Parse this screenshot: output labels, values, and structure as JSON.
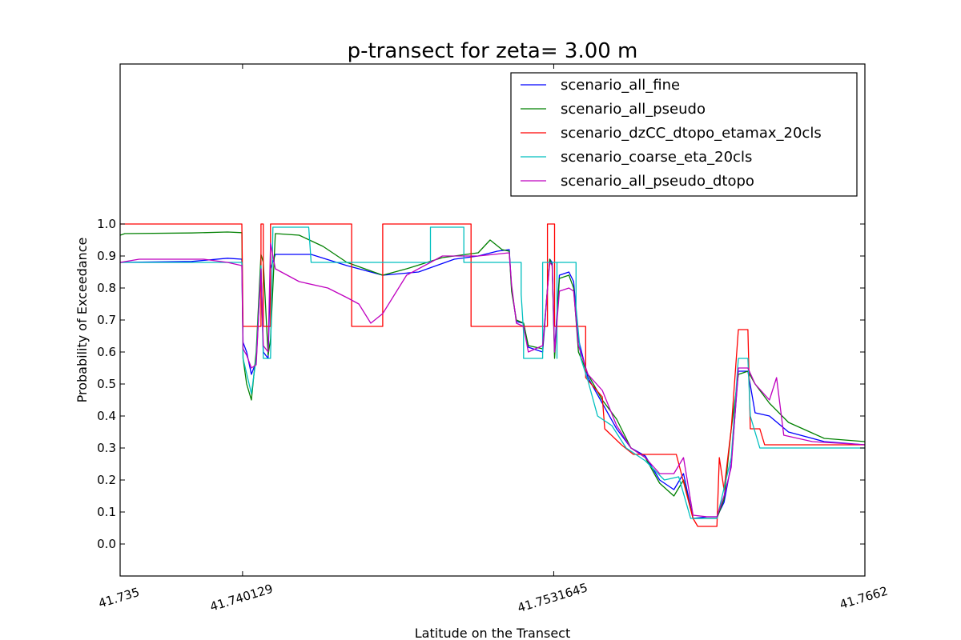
{
  "chart_data": {
    "type": "line",
    "title": "p-transect for zeta= 3.00 m",
    "xlabel": "Latitude on the Transect",
    "ylabel": "Probability of Exceedance",
    "xlim": [
      41.735,
      41.7662
    ],
    "ylim": [
      -0.1,
      1.5
    ],
    "xticks": [
      41.735,
      41.740129,
      41.7531645,
      41.7662
    ],
    "xtick_labels": [
      "41.735",
      "41.740129",
      "41.7531645",
      "41.7662"
    ],
    "yticks": [
      0.0,
      0.1,
      0.2,
      0.3,
      0.4,
      0.5,
      0.6,
      0.7,
      0.8,
      0.9,
      1.0
    ],
    "ytick_labels": [
      "0.0",
      "0.1",
      "0.2",
      "0.3",
      "0.4",
      "0.5",
      "0.6",
      "0.7",
      "0.8",
      "0.9",
      "1.0"
    ],
    "grid": false,
    "legend_position": "top-right",
    "series": [
      {
        "name": "scenario_all_fine",
        "color": "#0000ff",
        "points": [
          [
            41.735,
            0.88
          ],
          [
            41.738,
            0.883
          ],
          [
            41.7395,
            0.893
          ],
          [
            41.7401,
            0.89
          ],
          [
            41.74015,
            0.63
          ],
          [
            41.7403,
            0.6
          ],
          [
            41.7405,
            0.53
          ],
          [
            41.7407,
            0.57
          ],
          [
            41.7409,
            0.86
          ],
          [
            41.741,
            0.6
          ],
          [
            41.7412,
            0.58
          ],
          [
            41.7413,
            0.86
          ],
          [
            41.7415,
            0.905
          ],
          [
            41.743,
            0.905
          ],
          [
            41.7445,
            0.87
          ],
          [
            41.746,
            0.84
          ],
          [
            41.7475,
            0.85
          ],
          [
            41.749,
            0.89
          ],
          [
            41.75,
            0.9
          ],
          [
            41.7508,
            0.915
          ],
          [
            41.7513,
            0.92
          ],
          [
            41.7514,
            0.8
          ],
          [
            41.7516,
            0.695
          ],
          [
            41.7519,
            0.69
          ],
          [
            41.7521,
            0.615
          ],
          [
            41.7527,
            0.6
          ],
          [
            41.753,
            0.89
          ],
          [
            41.7531,
            0.88
          ],
          [
            41.7532,
            0.6
          ],
          [
            41.7534,
            0.84
          ],
          [
            41.7538,
            0.85
          ],
          [
            41.754,
            0.82
          ],
          [
            41.7542,
            0.64
          ],
          [
            41.7546,
            0.52
          ],
          [
            41.7552,
            0.44
          ],
          [
            41.7558,
            0.36
          ],
          [
            41.7564,
            0.3
          ],
          [
            41.757,
            0.275
          ],
          [
            41.7576,
            0.2
          ],
          [
            41.7582,
            0.17
          ],
          [
            41.7586,
            0.22
          ],
          [
            41.759,
            0.08
          ],
          [
            41.7596,
            0.085
          ],
          [
            41.76,
            0.085
          ],
          [
            41.7603,
            0.13
          ],
          [
            41.7606,
            0.25
          ],
          [
            41.7609,
            0.54
          ],
          [
            41.7613,
            0.54
          ],
          [
            41.7616,
            0.41
          ],
          [
            41.7622,
            0.4
          ],
          [
            41.763,
            0.35
          ],
          [
            41.7645,
            0.32
          ],
          [
            41.7662,
            0.31
          ]
        ]
      },
      {
        "name": "scenario_all_pseudo",
        "color": "#008000",
        "points": [
          [
            41.735,
            0.965
          ],
          [
            41.7352,
            0.97
          ],
          [
            41.738,
            0.972
          ],
          [
            41.7395,
            0.975
          ],
          [
            41.7401,
            0.973
          ],
          [
            41.74015,
            0.58
          ],
          [
            41.7403,
            0.5
          ],
          [
            41.7405,
            0.45
          ],
          [
            41.7407,
            0.6
          ],
          [
            41.7409,
            0.905
          ],
          [
            41.741,
            0.88
          ],
          [
            41.7412,
            0.59
          ],
          [
            41.7413,
            0.64
          ],
          [
            41.7415,
            0.97
          ],
          [
            41.7425,
            0.965
          ],
          [
            41.7435,
            0.93
          ],
          [
            41.7445,
            0.88
          ],
          [
            41.746,
            0.84
          ],
          [
            41.747,
            0.86
          ],
          [
            41.7485,
            0.895
          ],
          [
            41.75,
            0.91
          ],
          [
            41.7505,
            0.95
          ],
          [
            41.751,
            0.92
          ],
          [
            41.7513,
            0.915
          ],
          [
            41.7514,
            0.79
          ],
          [
            41.7516,
            0.7
          ],
          [
            41.7519,
            0.69
          ],
          [
            41.7521,
            0.62
          ],
          [
            41.7527,
            0.61
          ],
          [
            41.753,
            0.89
          ],
          [
            41.7531,
            0.87
          ],
          [
            41.7532,
            0.58
          ],
          [
            41.7534,
            0.83
          ],
          [
            41.7538,
            0.84
          ],
          [
            41.754,
            0.8
          ],
          [
            41.7542,
            0.6
          ],
          [
            41.7546,
            0.53
          ],
          [
            41.7552,
            0.45
          ],
          [
            41.7558,
            0.39
          ],
          [
            41.7564,
            0.3
          ],
          [
            41.757,
            0.27
          ],
          [
            41.7576,
            0.19
          ],
          [
            41.7582,
            0.15
          ],
          [
            41.7586,
            0.2
          ],
          [
            41.759,
            0.08
          ],
          [
            41.7596,
            0.08
          ],
          [
            41.76,
            0.08
          ],
          [
            41.7603,
            0.14
          ],
          [
            41.7606,
            0.36
          ],
          [
            41.7609,
            0.53
          ],
          [
            41.7613,
            0.54
          ],
          [
            41.7616,
            0.5
          ],
          [
            41.7622,
            0.44
          ],
          [
            41.763,
            0.38
          ],
          [
            41.7645,
            0.33
          ],
          [
            41.7662,
            0.32
          ]
        ]
      },
      {
        "name": "scenario_dzCC_dtopo_etamax_20cls",
        "color": "#ff0000",
        "points": [
          [
            41.735,
            1.0
          ],
          [
            41.7401,
            1.0
          ],
          [
            41.74015,
            0.68
          ],
          [
            41.7409,
            0.68
          ],
          [
            41.7409,
            1.0
          ],
          [
            41.741,
            1.0
          ],
          [
            41.741,
            0.68
          ],
          [
            41.7413,
            0.68
          ],
          [
            41.7413,
            1.0
          ],
          [
            41.7447,
            1.0
          ],
          [
            41.7447,
            0.68
          ],
          [
            41.746,
            0.68
          ],
          [
            41.746,
            1.0
          ],
          [
            41.7497,
            1.0
          ],
          [
            41.7497,
            0.68
          ],
          [
            41.7529,
            0.68
          ],
          [
            41.7529,
            1.0
          ],
          [
            41.7532,
            1.0
          ],
          [
            41.7532,
            0.68
          ],
          [
            41.7545,
            0.68
          ],
          [
            41.7545,
            0.52
          ],
          [
            41.7552,
            0.46
          ],
          [
            41.7553,
            0.36
          ],
          [
            41.756,
            0.31
          ],
          [
            41.7565,
            0.28
          ],
          [
            41.7583,
            0.28
          ],
          [
            41.759,
            0.08
          ],
          [
            41.7592,
            0.055
          ],
          [
            41.76,
            0.055
          ],
          [
            41.7601,
            0.27
          ],
          [
            41.7603,
            0.17
          ],
          [
            41.7606,
            0.36
          ],
          [
            41.7609,
            0.67
          ],
          [
            41.7613,
            0.67
          ],
          [
            41.7614,
            0.36
          ],
          [
            41.7618,
            0.36
          ],
          [
            41.762,
            0.31
          ],
          [
            41.763,
            0.31
          ],
          [
            41.7662,
            0.31
          ]
        ]
      },
      {
        "name": "scenario_coarse_eta_20cls",
        "color": "#00bfbf",
        "points": [
          [
            41.735,
            0.88
          ],
          [
            41.7401,
            0.88
          ],
          [
            41.74015,
            0.58
          ],
          [
            41.7405,
            0.47
          ],
          [
            41.7407,
            0.58
          ],
          [
            41.7409,
            0.87
          ],
          [
            41.741,
            0.58
          ],
          [
            41.7413,
            0.58
          ],
          [
            41.7414,
            0.99
          ],
          [
            41.7429,
            0.99
          ],
          [
            41.743,
            0.88
          ],
          [
            41.748,
            0.88
          ],
          [
            41.748,
            0.99
          ],
          [
            41.7494,
            0.99
          ],
          [
            41.7494,
            0.88
          ],
          [
            41.7518,
            0.88
          ],
          [
            41.7518,
            0.78
          ],
          [
            41.7519,
            0.66
          ],
          [
            41.7519,
            0.58
          ],
          [
            41.7527,
            0.58
          ],
          [
            41.7527,
            0.88
          ],
          [
            41.7533,
            0.88
          ],
          [
            41.7533,
            0.58
          ],
          [
            41.7533,
            0.88
          ],
          [
            41.7541,
            0.88
          ],
          [
            41.7541,
            0.74
          ],
          [
            41.7543,
            0.58
          ],
          [
            41.7546,
            0.51
          ],
          [
            41.755,
            0.4
          ],
          [
            41.7556,
            0.37
          ],
          [
            41.7562,
            0.3
          ],
          [
            41.757,
            0.26
          ],
          [
            41.7578,
            0.2
          ],
          [
            41.7584,
            0.21
          ],
          [
            41.7589,
            0.08
          ],
          [
            41.76,
            0.08
          ],
          [
            41.7606,
            0.27
          ],
          [
            41.7609,
            0.58
          ],
          [
            41.7613,
            0.58
          ],
          [
            41.7614,
            0.4
          ],
          [
            41.7618,
            0.3
          ],
          [
            41.764,
            0.3
          ],
          [
            41.7662,
            0.3
          ]
        ]
      },
      {
        "name": "scenario_all_pseudo_dtopo",
        "color": "#bf00bf",
        "points": [
          [
            41.735,
            0.88
          ],
          [
            41.7358,
            0.89
          ],
          [
            41.7385,
            0.89
          ],
          [
            41.7395,
            0.88
          ],
          [
            41.7401,
            0.87
          ],
          [
            41.74015,
            0.61
          ],
          [
            41.7403,
            0.59
          ],
          [
            41.7405,
            0.55
          ],
          [
            41.7407,
            0.56
          ],
          [
            41.7409,
            0.86
          ],
          [
            41.741,
            0.62
          ],
          [
            41.7412,
            0.6
          ],
          [
            41.7413,
            0.94
          ],
          [
            41.7415,
            0.86
          ],
          [
            41.7425,
            0.82
          ],
          [
            41.7437,
            0.8
          ],
          [
            41.7445,
            0.77
          ],
          [
            41.745,
            0.75
          ],
          [
            41.7455,
            0.69
          ],
          [
            41.746,
            0.72
          ],
          [
            41.747,
            0.84
          ],
          [
            41.7485,
            0.9
          ],
          [
            41.75,
            0.9
          ],
          [
            41.7513,
            0.91
          ],
          [
            41.7514,
            0.81
          ],
          [
            41.7516,
            0.69
          ],
          [
            41.7519,
            0.68
          ],
          [
            41.7521,
            0.6
          ],
          [
            41.7527,
            0.62
          ],
          [
            41.753,
            0.88
          ],
          [
            41.7531,
            0.87
          ],
          [
            41.7532,
            0.6
          ],
          [
            41.7534,
            0.79
          ],
          [
            41.7538,
            0.8
          ],
          [
            41.754,
            0.79
          ],
          [
            41.7542,
            0.62
          ],
          [
            41.7546,
            0.53
          ],
          [
            41.7552,
            0.48
          ],
          [
            41.7558,
            0.37
          ],
          [
            41.7564,
            0.3
          ],
          [
            41.757,
            0.27
          ],
          [
            41.7576,
            0.22
          ],
          [
            41.7582,
            0.22
          ],
          [
            41.7586,
            0.27
          ],
          [
            41.759,
            0.09
          ],
          [
            41.7596,
            0.085
          ],
          [
            41.76,
            0.085
          ],
          [
            41.7603,
            0.15
          ],
          [
            41.7606,
            0.24
          ],
          [
            41.7609,
            0.55
          ],
          [
            41.7613,
            0.55
          ],
          [
            41.7616,
            0.5
          ],
          [
            41.7622,
            0.45
          ],
          [
            41.7625,
            0.52
          ],
          [
            41.7628,
            0.34
          ],
          [
            41.764,
            0.32
          ],
          [
            41.7662,
            0.31
          ]
        ]
      }
    ]
  }
}
